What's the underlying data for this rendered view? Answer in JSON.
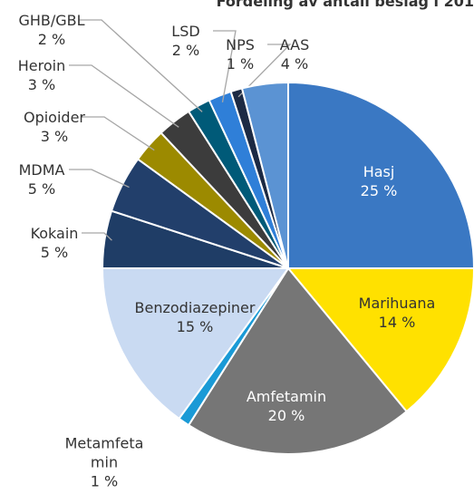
{
  "chart_data": {
    "type": "pie",
    "title": "Fordeling av antall beslag i 201",
    "categories": [
      "Hasj",
      "Marihuana",
      "Amfetamin",
      "Metamfetamin",
      "Benzodiazepiner",
      "Kokain",
      "MDMA",
      "Opioider",
      "Heroin",
      "GHB/GBL",
      "LSD",
      "NPS",
      "AAS"
    ],
    "values": [
      25,
      14,
      20,
      1,
      15,
      5,
      5,
      3,
      3,
      2,
      2,
      1,
      4
    ],
    "value_labels": [
      "25 %",
      "14 %",
      "20 %",
      "1 %",
      "15 %",
      "5 %",
      "5 %",
      "3 %",
      "3 %",
      "2 %",
      "2 %",
      "1 %",
      "4 %"
    ],
    "colors": [
      "#3a78c3",
      "#ffe100",
      "#767676",
      "#1a9ad6",
      "#c9daf2",
      "#1f3d66",
      "#223f6b",
      "#9c8a00",
      "#3c3c3c",
      "#005a78",
      "#2f7fd8",
      "#1c2a44",
      "#5b93d3"
    ]
  }
}
